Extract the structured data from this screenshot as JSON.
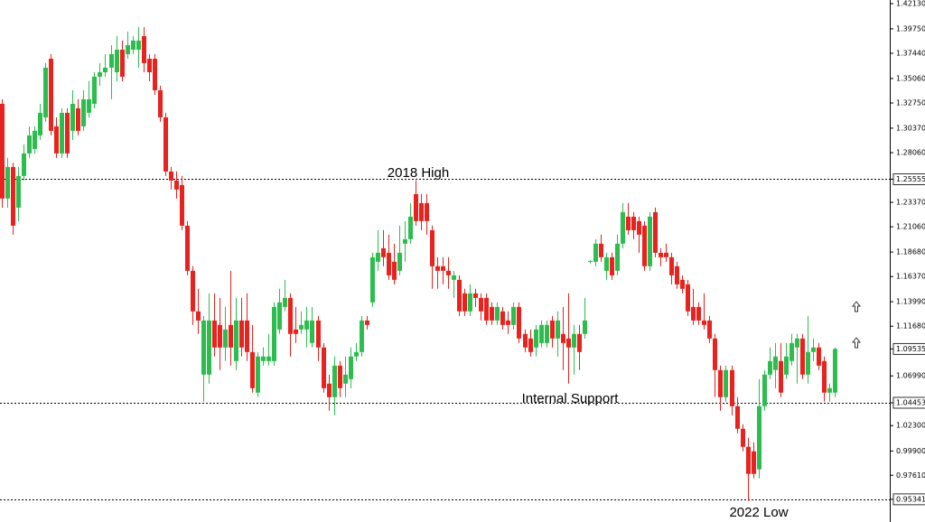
{
  "chart_data": {
    "type": "candlestick",
    "annotations": [
      "2018 High",
      "Internal Support",
      "2022 Low"
    ],
    "up_color": "#2dbd4e",
    "down_color": "#e8221e",
    "ylim": [
      0.932,
      1.4247
    ],
    "yticks": [
      {
        "value": 1.4213,
        "label": "1.42130"
      },
      {
        "value": 1.3975,
        "label": "1.39750"
      },
      {
        "value": 1.3744,
        "label": "1.37440"
      },
      {
        "value": 1.3506,
        "label": "1.35060"
      },
      {
        "value": 1.3275,
        "label": "1.32750"
      },
      {
        "value": 1.3037,
        "label": "1.30370"
      },
      {
        "value": 1.2806,
        "label": "1.28060"
      },
      1.25555,
      {
        "value": 1.2337,
        "label": "1.23370"
      },
      {
        "value": 1.2106,
        "label": "1.21060"
      },
      {
        "value": 1.1868,
        "label": "1.18680"
      },
      {
        "value": 1.1637,
        "label": "1.16370"
      },
      {
        "value": 1.1399,
        "label": "1.13990"
      },
      {
        "value": 1.1168,
        "label": "1.11680"
      },
      1.09535,
      {
        "value": 1.0699,
        "label": "1.06990"
      },
      1.04453,
      {
        "value": 1.023,
        "label": "1.02300"
      },
      {
        "value": 0.999,
        "label": "0.99900"
      },
      {
        "value": 0.9761,
        "label": "0.97610"
      },
      0.95341
    ],
    "dotted_levels": [
      1.25555,
      1.04453,
      0.95341
    ],
    "candles": [
      [
        1.3267,
        1.331,
        1.2287,
        1.2373
      ],
      [
        1.2373,
        1.2756,
        1.2287,
        1.2671
      ],
      [
        1.2671,
        1.2713,
        1.2032,
        1.2117
      ],
      [
        1.2287,
        1.2671,
        1.216,
        1.2586
      ],
      [
        1.2586,
        1.2884,
        1.2543,
        1.2799
      ],
      [
        1.2799,
        1.3054,
        1.2756,
        1.2969
      ],
      [
        1.2841,
        1.3054,
        1.2799,
        1.3012
      ],
      [
        1.2969,
        1.3267,
        1.2926,
        1.3182
      ],
      [
        1.3139,
        1.3651,
        1.3097,
        1.3608
      ],
      [
        1.3693,
        1.3736,
        1.2969,
        1.3012
      ],
      [
        1.3054,
        1.3139,
        1.2756,
        1.2799
      ],
      [
        1.2799,
        1.3225,
        1.2756,
        1.3182
      ],
      [
        1.3182,
        1.3225,
        1.2756,
        1.2799
      ],
      [
        1.3012,
        1.3395,
        1.2926,
        1.3267
      ],
      [
        1.3225,
        1.331,
        1.2969,
        1.3012
      ],
      [
        1.3054,
        1.3395,
        1.3012,
        1.331
      ],
      [
        1.3182,
        1.348,
        1.3139,
        1.331
      ],
      [
        1.3267,
        1.3565,
        1.3225,
        1.3523
      ],
      [
        1.3523,
        1.3651,
        1.3438,
        1.3565
      ],
      [
        1.3565,
        1.3736,
        1.3523,
        1.3608
      ],
      [
        1.3608,
        1.3821,
        1.331,
        1.3736
      ],
      [
        1.3565,
        1.3906,
        1.348,
        1.3778
      ],
      [
        1.3778,
        1.3864,
        1.348,
        1.3523
      ],
      [
        1.3736,
        1.3949,
        1.3693,
        1.3821
      ],
      [
        1.3778,
        1.3906,
        1.3736,
        1.3864
      ],
      [
        1.3778,
        1.3991,
        1.3608,
        1.3864
      ],
      [
        1.3906,
        1.3991,
        1.3565,
        1.3651
      ],
      [
        1.3693,
        1.3736,
        1.348,
        1.3565
      ],
      [
        1.3693,
        1.3736,
        1.3352,
        1.3395
      ],
      [
        1.3395,
        1.3438,
        1.3097,
        1.3139
      ],
      [
        1.3139,
        1.3182,
        1.2586,
        1.2628
      ],
      [
        1.2628,
        1.2671,
        1.2458,
        1.2543
      ],
      [
        1.2543,
        1.2628,
        1.2373,
        1.2458
      ],
      [
        1.25,
        1.2586,
        1.2074,
        1.2117
      ],
      [
        1.2117,
        1.216,
        1.1648,
        1.1691
      ],
      [
        1.1691,
        1.1734,
        1.118,
        1.1308
      ],
      [
        1.1308,
        1.1521,
        1.1095,
        1.1222
      ],
      [
        1.0711,
        1.1265,
        1.0456,
        1.1222
      ],
      [
        1.0711,
        1.1478,
        1.0626,
        1.1222
      ],
      [
        1.1222,
        1.1478,
        1.0882,
        1.0967
      ],
      [
        1.118,
        1.1435,
        1.0754,
        1.0967
      ],
      [
        1.0967,
        1.135,
        1.0839,
        1.1137
      ],
      [
        1.118,
        1.1691,
        1.0796,
        1.0967
      ],
      [
        1.0839,
        1.1435,
        1.0754,
        1.1222
      ],
      [
        1.1222,
        1.1435,
        1.0882,
        1.0967
      ],
      [
        1.1222,
        1.1478,
        1.0839,
        1.0924
      ],
      [
        1.0924,
        1.118,
        1.0541,
        1.0583
      ],
      [
        1.0541,
        1.0924,
        1.0498,
        1.0882
      ],
      [
        1.0839,
        1.0967,
        1.0796,
        1.0882
      ],
      [
        1.0839,
        1.1095,
        1.0796,
        1.0882
      ],
      [
        1.0839,
        1.1393,
        1.0796,
        1.135
      ],
      [
        1.1137,
        1.1521,
        1.1095,
        1.1393
      ],
      [
        1.135,
        1.1606,
        1.1308,
        1.1435
      ],
      [
        1.1435,
        1.1478,
        1.0882,
        1.1095
      ],
      [
        1.1137,
        1.135,
        1.1009,
        1.1095
      ],
      [
        1.1137,
        1.1308,
        1.1095,
        1.118
      ],
      [
        1.1137,
        1.135,
        1.0967,
        1.1222
      ],
      [
        1.1009,
        1.135,
        1.0967,
        1.1222
      ],
      [
        1.1222,
        1.1265,
        1.0839,
        1.0967
      ],
      [
        1.0967,
        1.1009,
        1.0541,
        1.0583
      ],
      [
        1.0626,
        1.0711,
        1.037,
        1.0498
      ],
      [
        1.0498,
        1.0882,
        1.0328,
        1.0796
      ],
      [
        1.0796,
        1.0839,
        1.0498,
        1.0583
      ],
      [
        1.0626,
        1.0882,
        1.0498,
        1.0711
      ],
      [
        1.0669,
        1.0967,
        1.0583,
        1.0882
      ],
      [
        1.0882,
        1.1009,
        1.0839,
        1.0924
      ],
      [
        1.0924,
        1.1265,
        1.0882,
        1.1222
      ],
      [
        1.1222,
        1.1265,
        1.1137,
        1.118
      ],
      [
        1.1393,
        1.1861,
        1.135,
        1.1819
      ],
      [
        1.1776,
        1.2074,
        1.1691,
        1.1861
      ],
      [
        1.1904,
        1.2074,
        1.1734,
        1.1819
      ],
      [
        1.1861,
        1.2032,
        1.1606,
        1.1648
      ],
      [
        1.1776,
        1.1947,
        1.1563,
        1.1606
      ],
      [
        1.1691,
        1.2117,
        1.1648,
        1.1861
      ],
      [
        1.1947,
        1.216,
        1.1776,
        1.1989
      ],
      [
        1.1989,
        1.233,
        1.1947,
        1.2202
      ],
      [
        1.2415,
        1.2543,
        1.2117,
        1.216
      ],
      [
        1.233,
        1.2415,
        1.2074,
        1.216
      ],
      [
        1.233,
        1.2415,
        1.2032,
        1.216
      ],
      [
        1.2074,
        1.2117,
        1.1521,
        1.1734
      ],
      [
        1.1734,
        1.1819,
        1.1521,
        1.1691
      ],
      [
        1.1734,
        1.1819,
        1.1563,
        1.1691
      ],
      [
        1.1691,
        1.1819,
        1.1521,
        1.1648
      ],
      [
        1.1606,
        1.1691,
        1.1435,
        1.1648
      ],
      [
        1.1606,
        1.1648,
        1.1265,
        1.1308
      ],
      [
        1.1478,
        1.1521,
        1.1265,
        1.1308
      ],
      [
        1.1308,
        1.1563,
        1.1265,
        1.1478
      ],
      [
        1.1478,
        1.1521,
        1.135,
        1.1435
      ],
      [
        1.1435,
        1.1478,
        1.1222,
        1.1308
      ],
      [
        1.1435,
        1.1478,
        1.118,
        1.1222
      ],
      [
        1.135,
        1.1393,
        1.118,
        1.1222
      ],
      [
        1.1222,
        1.1393,
        1.118,
        1.135
      ],
      [
        1.1308,
        1.135,
        1.1137,
        1.118
      ],
      [
        1.1222,
        1.1308,
        1.1095,
        1.118
      ],
      [
        1.118,
        1.1393,
        1.1137,
        1.135
      ],
      [
        1.135,
        1.1393,
        1.1009,
        1.1052
      ],
      [
        1.1095,
        1.1137,
        1.0924,
        1.0967
      ],
      [
        1.1052,
        1.1137,
        1.0882,
        1.0924
      ],
      [
        1.0967,
        1.118,
        1.0882,
        1.1137
      ],
      [
        1.1009,
        1.1222,
        1.0967,
        1.118
      ],
      [
        1.1009,
        1.1222,
        1.0967,
        1.118
      ],
      [
        1.1222,
        1.1265,
        1.0967,
        1.1052
      ],
      [
        1.1052,
        1.1308,
        1.0882,
        1.1222
      ],
      [
        1.1095,
        1.135,
        1.0754,
        1.1009
      ],
      [
        1.1052,
        1.1478,
        1.0626,
        1.0967
      ],
      [
        1.0967,
        1.118,
        1.0711,
        1.1095
      ],
      [
        1.1095,
        1.118,
        1.0754,
        1.0924
      ],
      [
        1.1095,
        1.1435,
        1.1052,
        1.1222
      ],
      [
        1.1776,
        1.179,
        1.176,
        1.1785
      ],
      [
        1.1776,
        1.1989,
        1.1734,
        1.1947
      ],
      [
        1.1947,
        1.2032,
        1.1776,
        1.1819
      ],
      [
        1.1691,
        1.1861,
        1.1606,
        1.1819
      ],
      [
        1.1819,
        1.1861,
        1.1606,
        1.1648
      ],
      [
        1.1691,
        1.2032,
        1.1648,
        1.1947
      ],
      [
        1.1947,
        1.233,
        1.1904,
        1.2245
      ],
      [
        1.2202,
        1.233,
        1.2032,
        1.2074
      ],
      [
        1.2202,
        1.2245,
        1.1989,
        1.2074
      ],
      [
        1.216,
        1.2202,
        1.1861,
        1.2032
      ],
      [
        1.2117,
        1.216,
        1.1691,
        1.1734
      ],
      [
        1.1734,
        1.2245,
        1.1691,
        1.2202
      ],
      [
        1.2245,
        1.2287,
        1.1819,
        1.1861
      ],
      [
        1.1861,
        1.1904,
        1.1734,
        1.1819
      ],
      [
        1.1861,
        1.1947,
        1.1776,
        1.1819
      ],
      [
        1.1819,
        1.1861,
        1.1563,
        1.1648
      ],
      [
        1.1734,
        1.1776,
        1.1521,
        1.1563
      ],
      [
        1.1606,
        1.1648,
        1.1478,
        1.1521
      ],
      [
        1.1563,
        1.1606,
        1.1265,
        1.1308
      ],
      [
        1.135,
        1.1521,
        1.118,
        1.1222
      ],
      [
        1.135,
        1.1393,
        1.118,
        1.1222
      ],
      [
        1.1222,
        1.1478,
        1.1137,
        1.118
      ],
      [
        1.1222,
        1.1265,
        1.1009,
        1.1052
      ],
      [
        1.1052,
        1.1095,
        1.0498,
        1.0754
      ],
      [
        1.0754,
        1.0796,
        1.037,
        1.0498
      ],
      [
        1.0498,
        1.0796,
        1.0456,
        1.0754
      ],
      [
        1.0754,
        1.0796,
        1.0328,
        1.0413
      ],
      [
        1.0413,
        1.0498,
        1.0157,
        1.02
      ],
      [
        1.02,
        1.0243,
        0.9987,
        1.003
      ],
      [
        1.003,
        1.0115,
        0.9518,
        0.9774
      ],
      [
        0.9987,
        1.0072,
        0.9731,
        0.9774
      ],
      [
        0.9817,
        1.0669,
        0.9731,
        1.0413
      ],
      [
        1.0413,
        1.0754,
        1.037,
        1.0711
      ],
      [
        1.0711,
        1.0967,
        1.0669,
        1.0839
      ],
      [
        1.0754,
        1.1009,
        1.0583,
        1.0882
      ],
      [
        1.0839,
        1.1009,
        1.0498,
        1.0541
      ],
      [
        1.0711,
        1.1009,
        1.0669,
        1.0882
      ],
      [
        1.0839,
        1.1095,
        1.0796,
        1.1009
      ],
      [
        1.0967,
        1.1095,
        1.0626,
        1.1052
      ],
      [
        1.1052,
        1.1095,
        1.0669,
        1.0711
      ],
      [
        1.0711,
        1.1265,
        1.0626,
        1.0924
      ],
      [
        1.0924,
        1.1052,
        1.0839,
        1.0967
      ],
      [
        1.0967,
        1.1009,
        1.0754,
        1.0796
      ],
      [
        1.0839,
        1.0882,
        1.0456,
        1.0541
      ],
      [
        1.0541,
        1.0626,
        1.0456,
        1.0583
      ],
      [
        1.0541,
        1.0967,
        1.0498,
        1.09535
      ]
    ]
  }
}
